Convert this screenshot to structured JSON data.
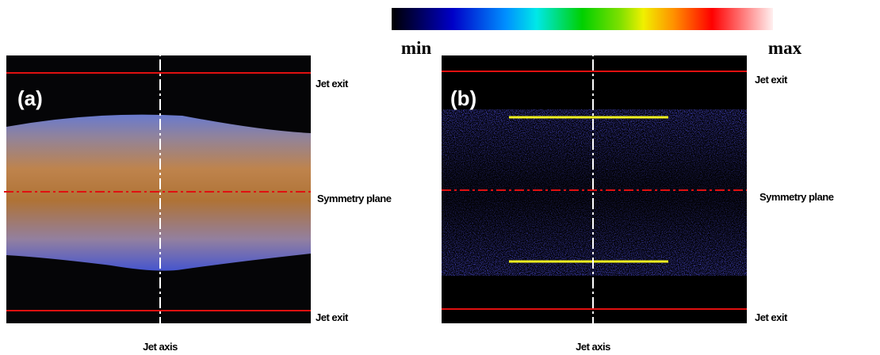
{
  "colorbar": {
    "min_label": "min",
    "max_label": "max"
  },
  "panels": [
    {
      "label": "(a)",
      "jet_exit_top": "Jet exit",
      "symmetry_plane": "Symmetry plane",
      "jet_exit_bottom": "Jet exit",
      "jet_axis": "Jet axis"
    },
    {
      "label": "(b)",
      "jet_exit_top": "Jet exit",
      "symmetry_plane": "Symmetry plane",
      "jet_exit_bottom": "Jet exit",
      "jet_axis": "Jet axis"
    }
  ]
}
